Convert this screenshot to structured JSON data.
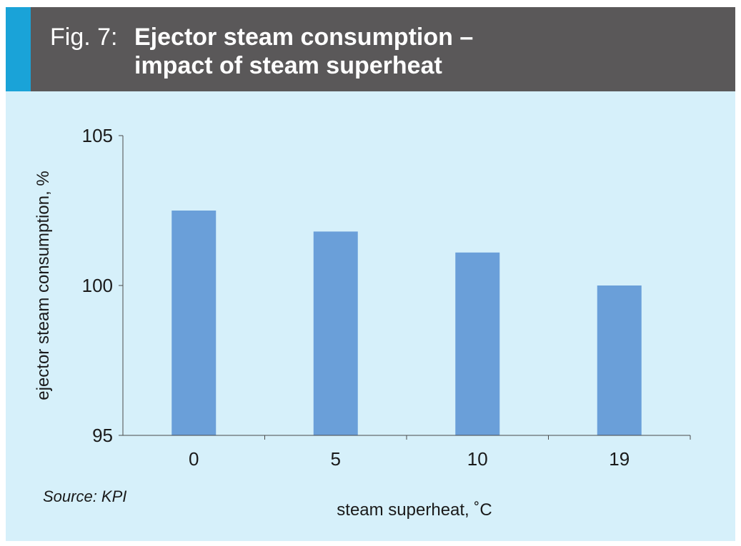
{
  "header": {
    "fig_label": "Fig. 7:",
    "title_line1": "Ejector steam consumption –",
    "title_line2": "impact of steam superheat"
  },
  "source": "Source: KPI",
  "colors": {
    "header_bg": "#5a5859",
    "accent": "#1aa3d8",
    "panel_bg": "#d6f0fa",
    "bar": "#6a9fd9"
  },
  "chart_data": {
    "type": "bar",
    "title": "Ejector steam consumption – impact of steam superheat",
    "categories": [
      "0",
      "5",
      "10",
      "19"
    ],
    "values": [
      102.5,
      101.8,
      101.1,
      100.0
    ],
    "xlabel": "steam superheat, ˚C",
    "ylabel": "ejector steam consumption, %",
    "ylim": [
      95,
      105
    ],
    "yticks": [
      95,
      100,
      105
    ],
    "grid": false,
    "legend": "none"
  }
}
